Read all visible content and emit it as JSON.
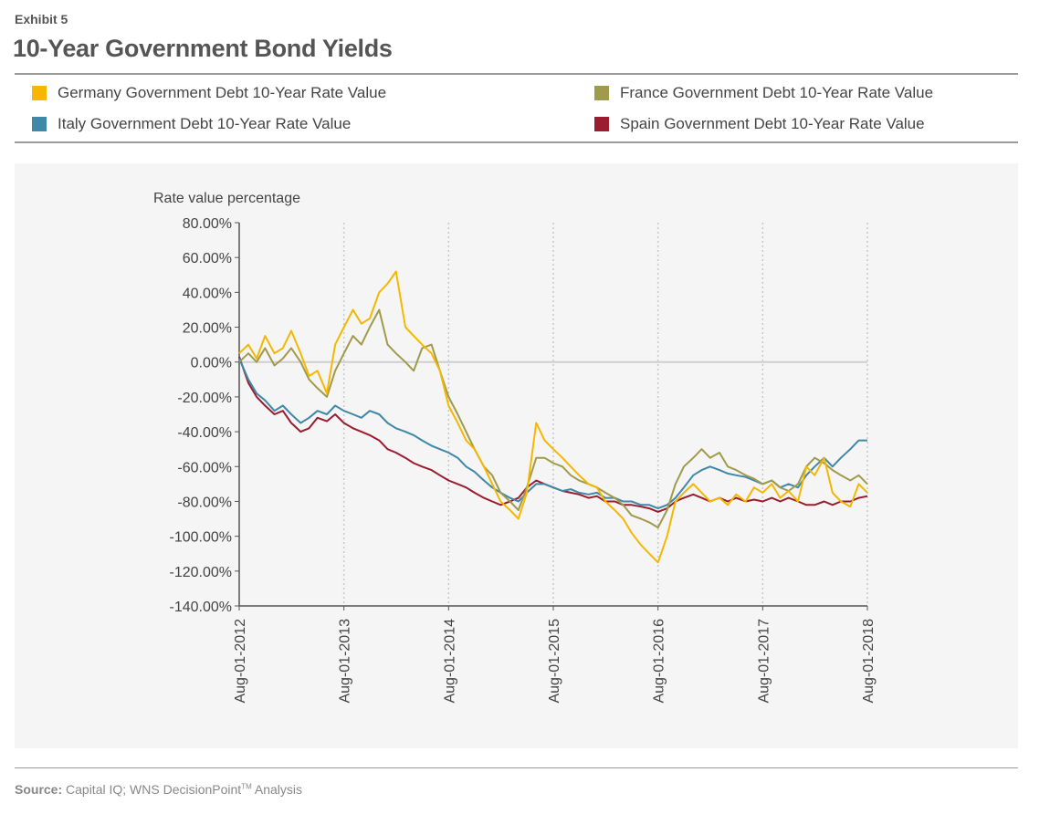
{
  "header": {
    "exhibit": "Exhibit 5",
    "title": "10-Year Government Bond Yields"
  },
  "footer": {
    "source_label": "Source:",
    "source_text": "Capital IQ; WNS DecisionPoint",
    "source_tm": "TM",
    "source_suffix": "Analysis"
  },
  "chart_data": {
    "type": "line",
    "title": "10-Year Government Bond Yields",
    "ylabel": "Rate value percentage",
    "xlabel": "",
    "ylim": [
      -140,
      80
    ],
    "yticks": [
      "80.00%",
      "60.00%",
      "40.00%",
      "20.00%",
      "0.00%",
      "-20.00%",
      "-40.00%",
      "-60.00%",
      "-80.00%",
      "-100.00%",
      "-120.00%",
      "-140.00%"
    ],
    "ytick_values": [
      80,
      60,
      40,
      20,
      0,
      -20,
      -40,
      -60,
      -80,
      -100,
      -120,
      -140
    ],
    "x_ticks": [
      "Aug-01-2012",
      "Aug-01-2013",
      "Aug-01-2014",
      "Aug-01-2015",
      "Aug-01-2016",
      "Aug-01-2017",
      "Aug-01-2018"
    ],
    "x_tick_years": [
      2012.583,
      2013.583,
      2014.583,
      2015.583,
      2016.583,
      2017.583,
      2018.583
    ],
    "grid": "vertical dotted at each x tick; solid zero line",
    "legend_position": "top",
    "series": [
      {
        "name": "Germany Government Debt 10-Year Rate Value",
        "color": "#f5b700",
        "x": [
          2012.583,
          2012.67,
          2012.75,
          2012.83,
          2012.92,
          2013.0,
          2013.08,
          2013.17,
          2013.25,
          2013.33,
          2013.42,
          2013.5,
          2013.583,
          2013.67,
          2013.75,
          2013.83,
          2013.92,
          2014.0,
          2014.08,
          2014.17,
          2014.25,
          2014.33,
          2014.42,
          2014.5,
          2014.583,
          2014.67,
          2014.75,
          2014.83,
          2014.92,
          2015.0,
          2015.08,
          2015.17,
          2015.25,
          2015.33,
          2015.42,
          2015.5,
          2015.583,
          2015.67,
          2015.75,
          2015.83,
          2015.92,
          2016.0,
          2016.08,
          2016.17,
          2016.25,
          2016.33,
          2016.42,
          2016.5,
          2016.583,
          2016.67,
          2016.75,
          2016.83,
          2016.92,
          2017.0,
          2017.08,
          2017.17,
          2017.25,
          2017.33,
          2017.42,
          2017.5,
          2017.583,
          2017.67,
          2017.75,
          2017.83,
          2017.92,
          2018.0,
          2018.08,
          2018.17,
          2018.25,
          2018.33,
          2018.42,
          2018.5,
          2018.583
        ],
        "values": [
          5,
          10,
          2,
          15,
          5,
          8,
          18,
          5,
          -8,
          -5,
          -18,
          10,
          20,
          30,
          22,
          25,
          40,
          45,
          52,
          20,
          15,
          10,
          5,
          -5,
          -25,
          -35,
          -45,
          -50,
          -60,
          -70,
          -80,
          -85,
          -90,
          -75,
          -35,
          -45,
          -50,
          -55,
          -60,
          -65,
          -70,
          -72,
          -80,
          -85,
          -90,
          -98,
          -105,
          -110,
          -115,
          -100,
          -80,
          -75,
          -70,
          -75,
          -80,
          -78,
          -82,
          -76,
          -80,
          -72,
          -75,
          -70,
          -78,
          -74,
          -80,
          -60,
          -65,
          -55,
          -75,
          -80,
          -83,
          -70,
          -75
        ]
      },
      {
        "name": "France Government Debt 10-Year Rate Value",
        "color": "#a09a4c",
        "x": [
          2012.583,
          2012.67,
          2012.75,
          2012.83,
          2012.92,
          2013.0,
          2013.08,
          2013.17,
          2013.25,
          2013.33,
          2013.42,
          2013.5,
          2013.583,
          2013.67,
          2013.75,
          2013.83,
          2013.92,
          2014.0,
          2014.08,
          2014.17,
          2014.25,
          2014.33,
          2014.42,
          2014.5,
          2014.583,
          2014.67,
          2014.75,
          2014.83,
          2014.92,
          2015.0,
          2015.08,
          2015.17,
          2015.25,
          2015.33,
          2015.42,
          2015.5,
          2015.583,
          2015.67,
          2015.75,
          2015.83,
          2015.92,
          2016.0,
          2016.08,
          2016.17,
          2016.25,
          2016.33,
          2016.42,
          2016.5,
          2016.583,
          2016.67,
          2016.75,
          2016.83,
          2016.92,
          2017.0,
          2017.08,
          2017.17,
          2017.25,
          2017.33,
          2017.42,
          2017.5,
          2017.583,
          2017.67,
          2017.75,
          2017.83,
          2017.92,
          2018.0,
          2018.08,
          2018.17,
          2018.25,
          2018.33,
          2018.42,
          2018.5,
          2018.583
        ],
        "values": [
          0,
          5,
          0,
          8,
          -2,
          2,
          8,
          0,
          -10,
          -15,
          -20,
          -5,
          5,
          15,
          10,
          20,
          30,
          10,
          5,
          0,
          -5,
          8,
          10,
          -5,
          -20,
          -30,
          -40,
          -50,
          -60,
          -65,
          -75,
          -80,
          -85,
          -72,
          -55,
          -55,
          -58,
          -60,
          -65,
          -68,
          -70,
          -72,
          -75,
          -78,
          -82,
          -88,
          -90,
          -92,
          -95,
          -85,
          -70,
          -60,
          -55,
          -50,
          -55,
          -52,
          -60,
          -62,
          -65,
          -67,
          -70,
          -68,
          -72,
          -74,
          -70,
          -60,
          -55,
          -58,
          -62,
          -65,
          -68,
          -65,
          -70
        ]
      },
      {
        "name": "Italy Government Debt 10-Year Rate Value",
        "color": "#3f88a8",
        "x": [
          2012.583,
          2012.67,
          2012.75,
          2012.83,
          2012.92,
          2013.0,
          2013.08,
          2013.17,
          2013.25,
          2013.33,
          2013.42,
          2013.5,
          2013.583,
          2013.67,
          2013.75,
          2013.83,
          2013.92,
          2014.0,
          2014.08,
          2014.17,
          2014.25,
          2014.33,
          2014.42,
          2014.5,
          2014.583,
          2014.67,
          2014.75,
          2014.83,
          2014.92,
          2015.0,
          2015.08,
          2015.17,
          2015.25,
          2015.33,
          2015.42,
          2015.5,
          2015.583,
          2015.67,
          2015.75,
          2015.83,
          2015.92,
          2016.0,
          2016.08,
          2016.17,
          2016.25,
          2016.33,
          2016.42,
          2016.5,
          2016.583,
          2016.67,
          2016.75,
          2016.83,
          2016.92,
          2017.0,
          2017.08,
          2017.17,
          2017.25,
          2017.33,
          2017.42,
          2017.5,
          2017.583,
          2017.67,
          2017.75,
          2017.83,
          2017.92,
          2018.0,
          2018.08,
          2018.17,
          2018.25,
          2018.33,
          2018.42,
          2018.5,
          2018.583
        ],
        "values": [
          2,
          -10,
          -18,
          -22,
          -28,
          -25,
          -30,
          -35,
          -32,
          -28,
          -30,
          -25,
          -28,
          -30,
          -32,
          -28,
          -30,
          -35,
          -38,
          -40,
          -42,
          -45,
          -48,
          -50,
          -52,
          -55,
          -60,
          -63,
          -68,
          -72,
          -75,
          -78,
          -80,
          -75,
          -70,
          -70,
          -72,
          -74,
          -73,
          -75,
          -76,
          -75,
          -78,
          -78,
          -80,
          -80,
          -82,
          -82,
          -84,
          -82,
          -78,
          -72,
          -65,
          -62,
          -60,
          -62,
          -64,
          -65,
          -66,
          -68,
          -70,
          -68,
          -72,
          -70,
          -72,
          -65,
          -60,
          -55,
          -60,
          -55,
          -50,
          -45,
          -45
        ]
      },
      {
        "name": "Spain Government Debt 10-Year Rate Value",
        "color": "#9b1c2e",
        "x": [
          2012.583,
          2012.67,
          2012.75,
          2012.83,
          2012.92,
          2013.0,
          2013.08,
          2013.17,
          2013.25,
          2013.33,
          2013.42,
          2013.5,
          2013.583,
          2013.67,
          2013.75,
          2013.83,
          2013.92,
          2014.0,
          2014.08,
          2014.17,
          2014.25,
          2014.33,
          2014.42,
          2014.5,
          2014.583,
          2014.67,
          2014.75,
          2014.83,
          2014.92,
          2015.0,
          2015.08,
          2015.17,
          2015.25,
          2015.33,
          2015.42,
          2015.5,
          2015.583,
          2015.67,
          2015.75,
          2015.83,
          2015.92,
          2016.0,
          2016.08,
          2016.17,
          2016.25,
          2016.33,
          2016.42,
          2016.5,
          2016.583,
          2016.67,
          2016.75,
          2016.83,
          2016.92,
          2017.0,
          2017.08,
          2017.17,
          2017.25,
          2017.33,
          2017.42,
          2017.5,
          2017.583,
          2017.67,
          2017.75,
          2017.83,
          2017.92,
          2018.0,
          2018.08,
          2018.17,
          2018.25,
          2018.33,
          2018.42,
          2018.5,
          2018.583
        ],
        "values": [
          3,
          -12,
          -20,
          -25,
          -30,
          -28,
          -35,
          -40,
          -38,
          -32,
          -34,
          -30,
          -35,
          -38,
          -40,
          -42,
          -45,
          -50,
          -52,
          -55,
          -58,
          -60,
          -62,
          -65,
          -68,
          -70,
          -72,
          -75,
          -78,
          -80,
          -82,
          -80,
          -78,
          -72,
          -68,
          -70,
          -72,
          -74,
          -75,
          -76,
          -78,
          -77,
          -80,
          -80,
          -82,
          -82,
          -83,
          -84,
          -86,
          -84,
          -80,
          -78,
          -76,
          -78,
          -80,
          -78,
          -80,
          -78,
          -80,
          -79,
          -80,
          -78,
          -80,
          -78,
          -80,
          -82,
          -82,
          -80,
          -82,
          -80,
          -80,
          -78,
          -77
        ]
      }
    ]
  }
}
